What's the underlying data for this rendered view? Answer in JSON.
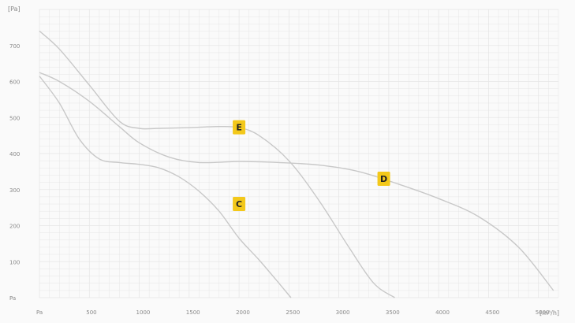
{
  "chart_data": {
    "type": "line",
    "title": "",
    "xlabel": "[m³/h]",
    "ylabel": "[Pa]",
    "xlim": [
      0,
      5200
    ],
    "ylim": [
      0,
      800
    ],
    "x_ticks": [
      0,
      500,
      1000,
      1500,
      2000,
      2500,
      3000,
      3500,
      4000,
      4500,
      5000
    ],
    "x_tick_labels": [
      "Pa",
      "500",
      "1000",
      "1500",
      "2000",
      "2500",
      "3000",
      "3500",
      "4000",
      "4500",
      "5000"
    ],
    "y_ticks": [
      0,
      100,
      200,
      300,
      400,
      500,
      600,
      700
    ],
    "y_tick_labels": [
      "Pa",
      "100",
      "200",
      "300",
      "400",
      "500",
      "600",
      "700"
    ],
    "grid": true,
    "colors": {
      "grid": "#e6e6e6",
      "curve": "#c8c8c8",
      "tick_text": "#888888",
      "marker_fill": "#f3c81a",
      "marker_text": "#222222"
    },
    "series": [
      {
        "name": "C",
        "x": [
          0,
          200,
          400,
          600,
          800,
          1000,
          1200,
          1400,
          1600,
          1800,
          2000,
          2200,
          2400,
          2520
        ],
        "y": [
          615,
          540,
          440,
          385,
          375,
          370,
          360,
          335,
          295,
          240,
          165,
          105,
          40,
          0
        ]
      },
      {
        "name": "D",
        "x": [
          0,
          200,
          500,
          800,
          1000,
          1300,
          1600,
          2000,
          2400,
          2800,
          3200,
          3600,
          4000,
          4400,
          4800,
          5150
        ],
        "y": [
          625,
          600,
          545,
          475,
          430,
          390,
          375,
          378,
          375,
          368,
          350,
          315,
          275,
          225,
          140,
          20
        ]
      },
      {
        "name": "E",
        "x": [
          0,
          200,
          500,
          800,
          1000,
          1200,
          1500,
          1800,
          2000,
          2200,
          2500,
          2800,
          3100,
          3350,
          3560
        ],
        "y": [
          740,
          690,
          590,
          490,
          470,
          470,
          472,
          475,
          472,
          450,
          380,
          270,
          140,
          40,
          0
        ]
      }
    ],
    "annotations": [
      {
        "label": "E",
        "x": 2000,
        "y": 473
      },
      {
        "label": "D",
        "x": 3450,
        "y": 330
      },
      {
        "label": "C",
        "x": 2000,
        "y": 260
      }
    ]
  }
}
